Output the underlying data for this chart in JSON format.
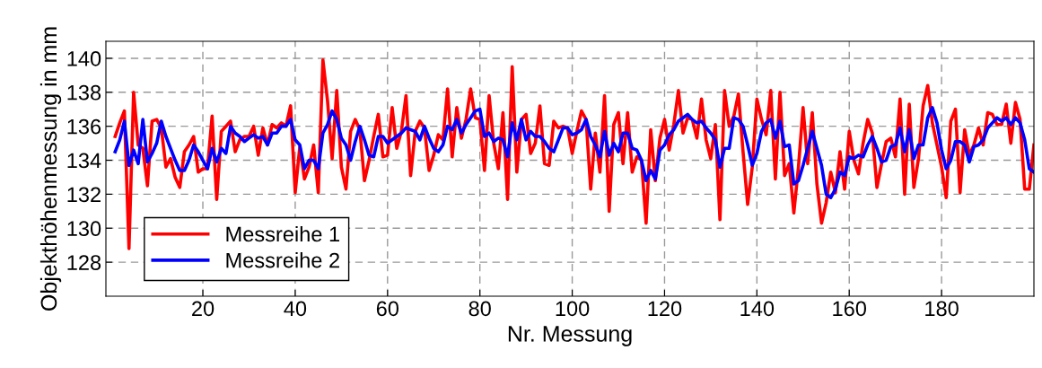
{
  "chart_data": {
    "type": "line",
    "xlabel": "Nr. Messung",
    "ylabel": "Objekthöhenmessung in mm",
    "x": [
      1,
      2,
      3,
      4,
      5,
      6,
      7,
      8,
      9,
      10,
      11,
      12,
      13,
      14,
      15,
      16,
      17,
      18,
      19,
      20,
      21,
      22,
      23,
      24,
      25,
      26,
      27,
      28,
      29,
      30,
      31,
      32,
      33,
      34,
      35,
      36,
      37,
      38,
      39,
      40,
      41,
      42,
      43,
      44,
      45,
      46,
      47,
      48,
      49,
      50,
      51,
      52,
      53,
      54,
      55,
      56,
      57,
      58,
      59,
      60,
      61,
      62,
      63,
      64,
      65,
      66,
      67,
      68,
      69,
      70,
      71,
      72,
      73,
      74,
      75,
      76,
      77,
      78,
      79,
      80,
      81,
      82,
      83,
      84,
      85,
      86,
      87,
      88,
      89,
      90,
      91,
      92,
      93,
      94,
      95,
      96,
      97,
      98,
      99,
      100,
      101,
      102,
      103,
      104,
      105,
      106,
      107,
      108,
      109,
      110,
      111,
      112,
      113,
      114,
      115,
      116,
      117,
      118,
      119,
      120,
      121,
      122,
      123,
      124,
      125,
      126,
      127,
      128,
      129,
      130,
      131,
      132,
      133,
      134,
      135,
      136,
      137,
      138,
      139,
      140,
      141,
      142,
      143,
      144,
      145,
      146,
      147,
      148,
      149,
      150,
      151,
      152,
      153,
      154,
      155,
      156,
      157,
      158,
      159,
      160,
      161,
      162,
      163,
      164,
      165,
      166,
      167,
      168,
      169,
      170,
      171,
      172,
      173,
      174,
      175,
      176,
      177,
      178,
      179,
      180,
      181,
      182,
      183,
      184,
      185,
      186,
      187,
      188,
      189,
      190,
      191,
      192,
      193,
      194,
      195,
      196,
      197,
      198,
      199,
      200
    ],
    "series": [
      {
        "name": "Messreihe 1",
        "color": "#ff0000",
        "values": [
          135.4,
          136.2,
          136.9,
          128.8,
          138.0,
          134.9,
          134.7,
          132.5,
          136.3,
          136.4,
          135.9,
          133.6,
          134.1,
          133.0,
          132.4,
          134.5,
          134.9,
          135.4,
          133.3,
          133.5,
          133.5,
          136.6,
          131.7,
          135.7,
          136.0,
          136.3,
          134.5,
          135.2,
          135.4,
          135.4,
          136.0,
          134.3,
          135.9,
          134.9,
          136.1,
          135.9,
          136.2,
          136.0,
          137.2,
          132.1,
          134.8,
          132.9,
          133.6,
          134.9,
          132.1,
          139.9,
          137.5,
          134.1,
          138.1,
          133.6,
          132.3,
          135.7,
          136.4,
          135.8,
          132.8,
          134.0,
          135.4,
          136.7,
          134.2,
          134.3,
          137.1,
          134.7,
          135.7,
          137.8,
          133.1,
          135.7,
          136.3,
          135.9,
          133.4,
          134.3,
          135.5,
          135.2,
          138.2,
          134.2,
          137.1,
          135.3,
          136.4,
          138.2,
          136.5,
          136.4,
          133.4,
          137.8,
          135.0,
          133.5,
          136.8,
          131.7,
          139.5,
          133.3,
          136.4,
          136.7,
          134.4,
          135.0,
          137.2,
          133.8,
          133.7,
          136.3,
          135.9,
          136.0,
          135.9,
          134.4,
          135.7,
          136.9,
          136.4,
          132.3,
          135.6,
          133.3,
          137.8,
          131.0,
          136.1,
          136.8,
          133.8,
          136.8,
          133.3,
          134.2,
          134.0,
          130.3,
          135.8,
          132.8,
          135.3,
          136.4,
          134.6,
          136.1,
          138.1,
          135.6,
          136.5,
          136.4,
          135.3,
          137.6,
          135.2,
          134.1,
          136.1,
          130.5,
          138.1,
          136.0,
          136.6,
          137.9,
          134.5,
          131.4,
          133.6,
          137.6,
          136.4,
          135.5,
          138.1,
          132.9,
          138.0,
          133.1,
          133.8,
          130.9,
          133.6,
          137.1,
          133.8,
          136.8,
          132.6,
          130.3,
          131.5,
          133.3,
          132.1,
          134.5,
          132.3,
          135.7,
          134.0,
          133.2,
          135.0,
          136.4,
          135.6,
          132.4,
          133.8,
          135.1,
          135.3,
          134.2,
          137.6,
          132.0,
          137.3,
          132.4,
          134.1,
          137.2,
          138.4,
          136.2,
          134.9,
          133.6,
          131.8,
          136.3,
          137.0,
          132.1,
          135.8,
          134.3,
          134.9,
          135.9,
          134.9,
          136.8,
          136.7,
          136.1,
          136.1,
          137.3,
          135.0,
          137.4,
          136.4,
          132.3,
          132.3,
          134.9
        ]
      },
      {
        "name": "Messreihe 2",
        "color": "#0000ff",
        "values": [
          134.5,
          135.2,
          136.3,
          133.7,
          134.6,
          133.8,
          136.4,
          133.9,
          134.4,
          135.0,
          136.3,
          135.4,
          134.7,
          134.0,
          133.4,
          133.4,
          134.0,
          134.9,
          134.5,
          134.0,
          133.5,
          134.7,
          133.9,
          134.7,
          134.4,
          136.0,
          135.6,
          135.4,
          135.1,
          135.3,
          135.5,
          135.3,
          135.4,
          134.9,
          135.6,
          135.6,
          136.0,
          136.0,
          136.4,
          135.2,
          134.9,
          133.5,
          134.0,
          134.0,
          133.5,
          135.6,
          136.1,
          136.9,
          136.4,
          135.3,
          134.9,
          134.0,
          135.1,
          136.0,
          135.2,
          134.3,
          134.2,
          135.4,
          135.4,
          135.0,
          135.2,
          135.4,
          135.6,
          135.9,
          135.8,
          135.7,
          135.2,
          136.0,
          135.3,
          134.7,
          134.5,
          134.9,
          136.0,
          135.8,
          136.4,
          135.6,
          136.1,
          136.5,
          136.9,
          137.0,
          135.4,
          135.6,
          135.1,
          135.3,
          135.2,
          134.2,
          136.2,
          135.2,
          136.4,
          135.2,
          135.7,
          135.4,
          135.4,
          135.1,
          134.7,
          134.5,
          135.2,
          135.9,
          135.9,
          135.5,
          135.6,
          135.8,
          136.4,
          135.4,
          134.9,
          134.2,
          135.7,
          134.3,
          135.0,
          134.5,
          135.6,
          135.6,
          134.7,
          134.6,
          134.0,
          132.8,
          133.4,
          132.9,
          134.6,
          134.9,
          135.5,
          135.8,
          136.3,
          136.5,
          136.7,
          136.4,
          136.2,
          136.3,
          135.9,
          135.6,
          135.2,
          133.6,
          134.7,
          134.7,
          136.5,
          136.4,
          136.0,
          134.9,
          133.7,
          134.4,
          135.7,
          136.2,
          136.4,
          135.3,
          136.3,
          134.8,
          134.9,
          132.6,
          132.8,
          133.7,
          134.7,
          135.7,
          134.7,
          133.7,
          132.0,
          131.8,
          132.3,
          133.3,
          133.1,
          134.2,
          134.1,
          134.3,
          134.2,
          134.9,
          135.4,
          134.7,
          133.9,
          134.0,
          134.8,
          134.9,
          135.9,
          134.5,
          135.8,
          134.1,
          134.9,
          134.9,
          136.5,
          137.1,
          136.2,
          134.6,
          133.5,
          134.0,
          135.1,
          135.1,
          134.9,
          133.9,
          134.8,
          134.9,
          135.2,
          135.9,
          136.2,
          136.5,
          136.3,
          136.5,
          136.1,
          136.5,
          136.2,
          135.2,
          133.5,
          133.3
        ]
      }
    ],
    "xlim": [
      -1,
      200
    ],
    "xticks": [
      20,
      40,
      60,
      80,
      100,
      120,
      140,
      160,
      180
    ],
    "ylim": [
      126,
      141
    ],
    "yticks": [
      128,
      130,
      132,
      134,
      136,
      138,
      140
    ],
    "grid": true,
    "legend": "bottom left",
    "marker": "none",
    "line_style": "solid"
  }
}
